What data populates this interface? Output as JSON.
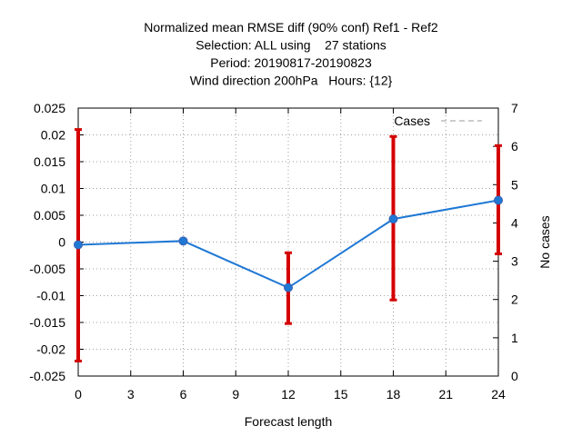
{
  "chart_data": {
    "type": "line",
    "title_lines": [
      "Normalized mean RMSE diff (90% conf) Ref1 - Ref2",
      "Selection: ALL using    27 stations",
      "Period: 20190817-20190823",
      "Wind direction 200hPa   Hours: {12}"
    ],
    "xlabel": "Forecast length",
    "y2label": "No cases",
    "xlim": [
      0,
      24
    ],
    "ylim": [
      -0.025,
      0.025
    ],
    "y2lim": [
      0,
      7
    ],
    "xticks": [
      0,
      3,
      6,
      9,
      12,
      15,
      18,
      21,
      24
    ],
    "yticks": [
      -0.025,
      -0.02,
      -0.015,
      -0.01,
      -0.005,
      0,
      0.005,
      0.01,
      0.015,
      0.02,
      0.025
    ],
    "ytick_labels": [
      "-0.025",
      "-0.02",
      "-0.015",
      "-0.01",
      "-0.005",
      "0",
      "0.005",
      "0.01",
      "0.015",
      "0.02",
      "0.025"
    ],
    "y2ticks": [
      0,
      1,
      2,
      3,
      4,
      5,
      6,
      7
    ],
    "grid": true,
    "legend": {
      "position": "top-right",
      "label": "Cases"
    },
    "series": [
      {
        "color": "#1f78d4",
        "x": [
          0,
          6,
          12,
          18,
          24
        ],
        "y": [
          -0.0005,
          0.0002,
          -0.0085,
          0.0043,
          0.0078
        ],
        "err_low": [
          -0.0222,
          0.0,
          -0.0152,
          -0.0108,
          -0.0022
        ],
        "err_high": [
          0.021,
          0.0004,
          -0.002,
          0.0197,
          0.018
        ]
      }
    ],
    "cases": {
      "color": "#999999",
      "x": [
        0,
        6,
        12,
        18,
        24
      ],
      "values": [
        7,
        7,
        7,
        7,
        7
      ]
    },
    "errorbar_color": "#d40000"
  }
}
